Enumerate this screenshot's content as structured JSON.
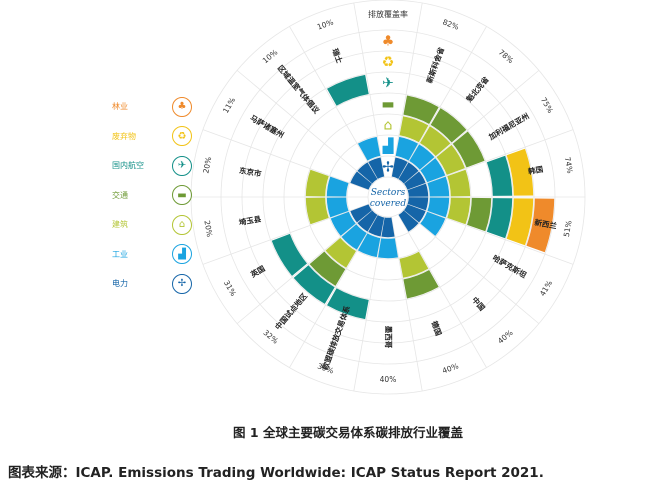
{
  "header_label": "排放覆盖率",
  "center_label": [
    "Sectors",
    "covered"
  ],
  "legend": [
    {
      "label": "林业",
      "color": "#ef8a2b",
      "icon": "tree-icon",
      "glyph": "♣"
    },
    {
      "label": "废弃物",
      "color": "#f2c316",
      "icon": "waste-truck-icon",
      "glyph": "♻"
    },
    {
      "label": "国内航空",
      "color": "#139088",
      "icon": "airplane-icon",
      "glyph": "✈"
    },
    {
      "label": "交通",
      "color": "#6e9a35",
      "icon": "truck-icon",
      "glyph": "▬"
    },
    {
      "label": "建筑",
      "color": "#b3c534",
      "icon": "house-icon",
      "glyph": "⌂"
    },
    {
      "label": "工业",
      "color": "#1aa3e0",
      "icon": "factory-icon",
      "glyph": "▟"
    },
    {
      "label": "电力",
      "color": "#1565a8",
      "icon": "wind-turbine-icon",
      "glyph": "✢"
    }
  ],
  "chart_data": {
    "type": "radial-sector-coverage",
    "sectors_inner_to_outer": [
      "电力",
      "工业",
      "建筑",
      "交通",
      "国内航空",
      "废弃物",
      "林业"
    ],
    "jurisdictions": [
      {
        "name": "新斯科舍省",
        "coverage": "82%",
        "sectors": [
          1,
          1,
          1,
          1,
          0,
          0,
          0
        ]
      },
      {
        "name": "魁北克省",
        "coverage": "78%",
        "sectors": [
          1,
          1,
          1,
          1,
          0,
          0,
          0
        ]
      },
      {
        "name": "加利福尼亚州",
        "coverage": "75%",
        "sectors": [
          1,
          1,
          1,
          1,
          0,
          0,
          0
        ]
      },
      {
        "name": "韩国",
        "coverage": "74%",
        "sectors": [
          1,
          1,
          1,
          0,
          1,
          1,
          0
        ]
      },
      {
        "name": "新西兰",
        "coverage": "51%",
        "sectors": [
          1,
          1,
          1,
          1,
          1,
          1,
          1
        ]
      },
      {
        "name": "哈萨克斯坦",
        "coverage": "41%",
        "sectors": [
          1,
          1,
          0,
          0,
          0,
          0,
          0
        ]
      },
      {
        "name": "中国",
        "coverage": "40%",
        "sectors": [
          1,
          0,
          0,
          0,
          0,
          0,
          0
        ]
      },
      {
        "name": "德国",
        "coverage": "40%",
        "sectors": [
          0,
          0,
          1,
          1,
          0,
          0,
          0
        ]
      },
      {
        "name": "墨西哥",
        "coverage": "40%",
        "sectors": [
          1,
          1,
          0,
          0,
          0,
          0,
          0
        ]
      },
      {
        "name": "欧盟碳排放交易体系",
        "coverage": "39%",
        "sectors": [
          1,
          1,
          0,
          0,
          1,
          0,
          0
        ]
      },
      {
        "name": "中国试点地区",
        "coverage": "32%",
        "sectors": [
          1,
          1,
          1,
          1,
          1,
          0,
          0
        ]
      },
      {
        "name": "英国",
        "coverage": "31%",
        "sectors": [
          1,
          1,
          0,
          0,
          1,
          0,
          0
        ]
      },
      {
        "name": "埼玉县",
        "coverage": "20%",
        "sectors": [
          0,
          1,
          1,
          0,
          0,
          0,
          0
        ]
      },
      {
        "name": "东京市",
        "coverage": "20%",
        "sectors": [
          0,
          1,
          1,
          0,
          0,
          0,
          0
        ]
      },
      {
        "name": "马萨诸塞州",
        "coverage": "11%",
        "sectors": [
          1,
          0,
          0,
          0,
          0,
          0,
          0
        ]
      },
      {
        "name": "区域温室气体倡议",
        "coverage": "10%",
        "sectors": [
          1,
          0,
          0,
          0,
          0,
          0,
          0
        ]
      },
      {
        "name": "瑞士",
        "coverage": "10%",
        "sectors": [
          1,
          1,
          0,
          0,
          1,
          0,
          0
        ]
      }
    ]
  },
  "caption": "图 1  全球主要碳交易体系碳排放行业覆盖",
  "source": "图表来源：ICAP. Emissions Trading Worldwide: ICAP Status Report 2021."
}
